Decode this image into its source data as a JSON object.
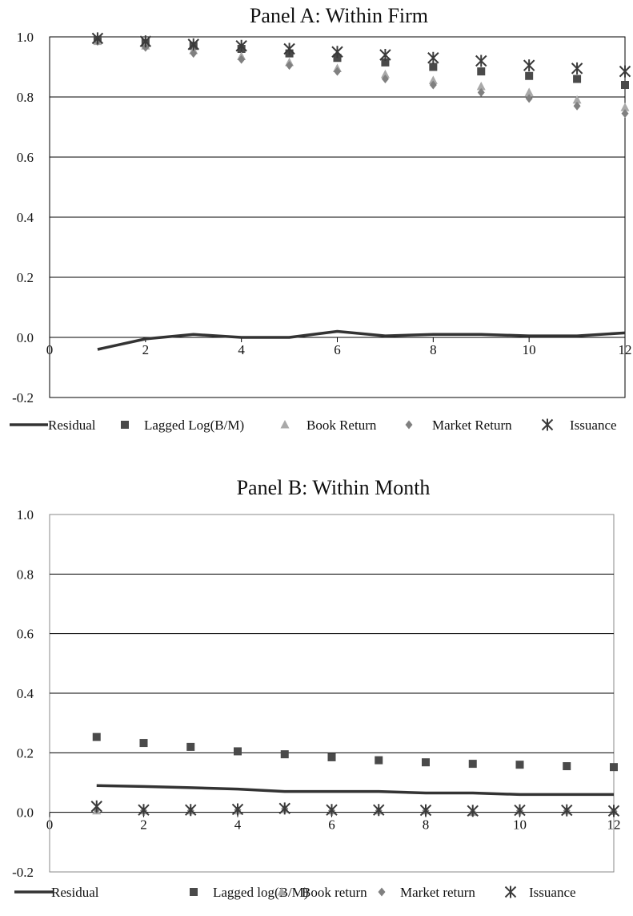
{
  "chart_data": [
    {
      "type": "scatter",
      "title": "Panel A: Within Firm",
      "xlabel": "",
      "ylabel": "",
      "xlim": [
        0,
        12
      ],
      "ylim": [
        -0.2,
        1.0
      ],
      "x_ticks": [
        "0",
        "2",
        "4",
        "6",
        "8",
        "10",
        "12"
      ],
      "y_ticks": [
        "1.0",
        "0.8",
        "0.6",
        "0.4",
        "0.2",
        "0.0",
        "-0.2"
      ],
      "grid": "horizontal",
      "legend_position": "bottom",
      "x": [
        1,
        2,
        3,
        4,
        5,
        6,
        7,
        8,
        9,
        10,
        11,
        12
      ],
      "series": [
        {
          "name": "Residual",
          "marker": "line",
          "color": "#333333",
          "values": [
            -0.04,
            -0.005,
            0.01,
            0.0,
            0.0,
            0.02,
            0.005,
            0.01,
            0.01,
            0.005,
            0.005,
            0.015
          ]
        },
        {
          "name": "Lagged Log(B/M)",
          "marker": "square",
          "color": "#4a4a4a",
          "values": [
            0.99,
            0.98,
            0.97,
            0.96,
            0.945,
            0.93,
            0.915,
            0.9,
            0.885,
            0.87,
            0.86,
            0.84
          ]
        },
        {
          "name": "Book Return",
          "marker": "triangle",
          "color": "#a9a9a9",
          "values": [
            0.985,
            0.97,
            0.955,
            0.935,
            0.915,
            0.895,
            0.875,
            0.855,
            0.835,
            0.815,
            0.79,
            0.765
          ]
        },
        {
          "name": "Market Return",
          "marker": "diamond",
          "color": "#808080",
          "values": [
            0.985,
            0.965,
            0.945,
            0.925,
            0.905,
            0.885,
            0.86,
            0.84,
            0.815,
            0.795,
            0.77,
            0.745
          ]
        },
        {
          "name": "Issuance",
          "marker": "star",
          "color": "#3a3a3a",
          "values": [
            0.995,
            0.985,
            0.975,
            0.97,
            0.96,
            0.95,
            0.94,
            0.93,
            0.92,
            0.905,
            0.895,
            0.885
          ]
        }
      ]
    },
    {
      "type": "scatter",
      "title": "Panel B: Within Month",
      "xlabel": "",
      "ylabel": "",
      "xlim": [
        0,
        12
      ],
      "ylim": [
        -0.2,
        1.0
      ],
      "x_ticks": [
        "0",
        "2",
        "4",
        "6",
        "8",
        "10",
        "12"
      ],
      "y_ticks": [
        "1.0",
        "0.8",
        "0.6",
        "0.4",
        "0.2",
        "0.0",
        "-0.2"
      ],
      "grid": "horizontal",
      "legend_position": "bottom",
      "x": [
        1,
        2,
        3,
        4,
        5,
        6,
        7,
        8,
        9,
        10,
        11,
        12
      ],
      "series": [
        {
          "name": "Residual",
          "marker": "line",
          "color": "#333333",
          "values": [
            0.09,
            0.087,
            0.083,
            0.078,
            0.07,
            0.07,
            0.07,
            0.065,
            0.065,
            0.06,
            0.06,
            0.06
          ]
        },
        {
          "name": "Lagged log(B/M)",
          "marker": "square",
          "color": "#4a4a4a",
          "values": [
            0.253,
            0.233,
            0.22,
            0.205,
            0.195,
            0.185,
            0.175,
            0.168,
            0.163,
            0.16,
            0.155,
            0.152
          ]
        },
        {
          "name": "Book return",
          "marker": "triangle",
          "color": "#a9a9a9",
          "values": [
            0.005,
            0.005,
            0.005,
            0.005,
            0.01,
            0.005,
            0.005,
            0.005,
            0.0,
            0.005,
            0.005,
            0.003
          ]
        },
        {
          "name": "Market return",
          "marker": "diamond",
          "color": "#808080",
          "values": [
            0.01,
            0.005,
            0.005,
            0.008,
            0.012,
            0.005,
            0.005,
            0.005,
            0.0,
            0.005,
            0.005,
            0.003
          ]
        },
        {
          "name": "Issuance",
          "marker": "star",
          "color": "#3a3a3a",
          "values": [
            0.02,
            0.008,
            0.008,
            0.01,
            0.013,
            0.008,
            0.008,
            0.007,
            0.005,
            0.007,
            0.007,
            0.005
          ]
        }
      ]
    }
  ]
}
